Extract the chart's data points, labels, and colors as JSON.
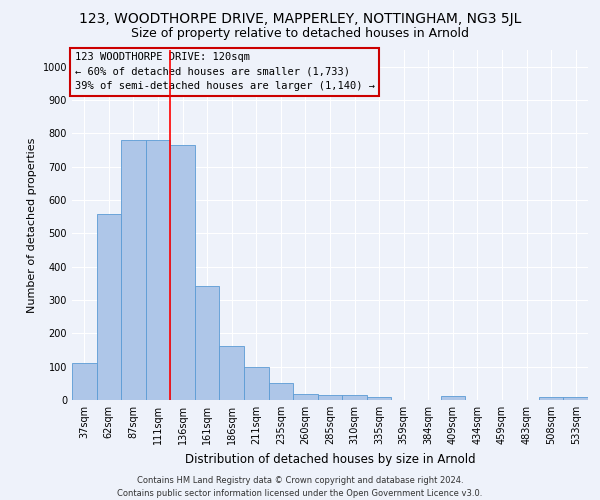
{
  "title": "123, WOODTHORPE DRIVE, MAPPERLEY, NOTTINGHAM, NG3 5JL",
  "subtitle": "Size of property relative to detached houses in Arnold",
  "xlabel": "Distribution of detached houses by size in Arnold",
  "ylabel": "Number of detached properties",
  "footer_line1": "Contains HM Land Registry data © Crown copyright and database right 2024.",
  "footer_line2": "Contains public sector information licensed under the Open Government Licence v3.0.",
  "categories": [
    "37sqm",
    "62sqm",
    "87sqm",
    "111sqm",
    "136sqm",
    "161sqm",
    "186sqm",
    "211sqm",
    "235sqm",
    "260sqm",
    "285sqm",
    "310sqm",
    "335sqm",
    "359sqm",
    "384sqm",
    "409sqm",
    "434sqm",
    "459sqm",
    "483sqm",
    "508sqm",
    "533sqm"
  ],
  "values": [
    112,
    558,
    780,
    780,
    765,
    343,
    162,
    98,
    52,
    18,
    15,
    15,
    10,
    0,
    0,
    12,
    0,
    0,
    0,
    8,
    8
  ],
  "bar_color": "#aec6e8",
  "bar_edge_color": "#5b9bd5",
  "red_line_x": 3.5,
  "annotation_text_line1": "123 WOODTHORPE DRIVE: 120sqm",
  "annotation_text_line2": "← 60% of detached houses are smaller (1,733)",
  "annotation_text_line3": "39% of semi-detached houses are larger (1,140) →",
  "annotation_box_color": "#cc0000",
  "ylim": [
    0,
    1050
  ],
  "yticks": [
    0,
    100,
    200,
    300,
    400,
    500,
    600,
    700,
    800,
    900,
    1000
  ],
  "background_color": "#eef2fa",
  "grid_color": "#ffffff",
  "title_fontsize": 10,
  "subtitle_fontsize": 9,
  "ylabel_fontsize": 8,
  "xlabel_fontsize": 8.5,
  "tick_fontsize": 7,
  "annotation_fontsize": 7.5,
  "footer_fontsize": 6
}
